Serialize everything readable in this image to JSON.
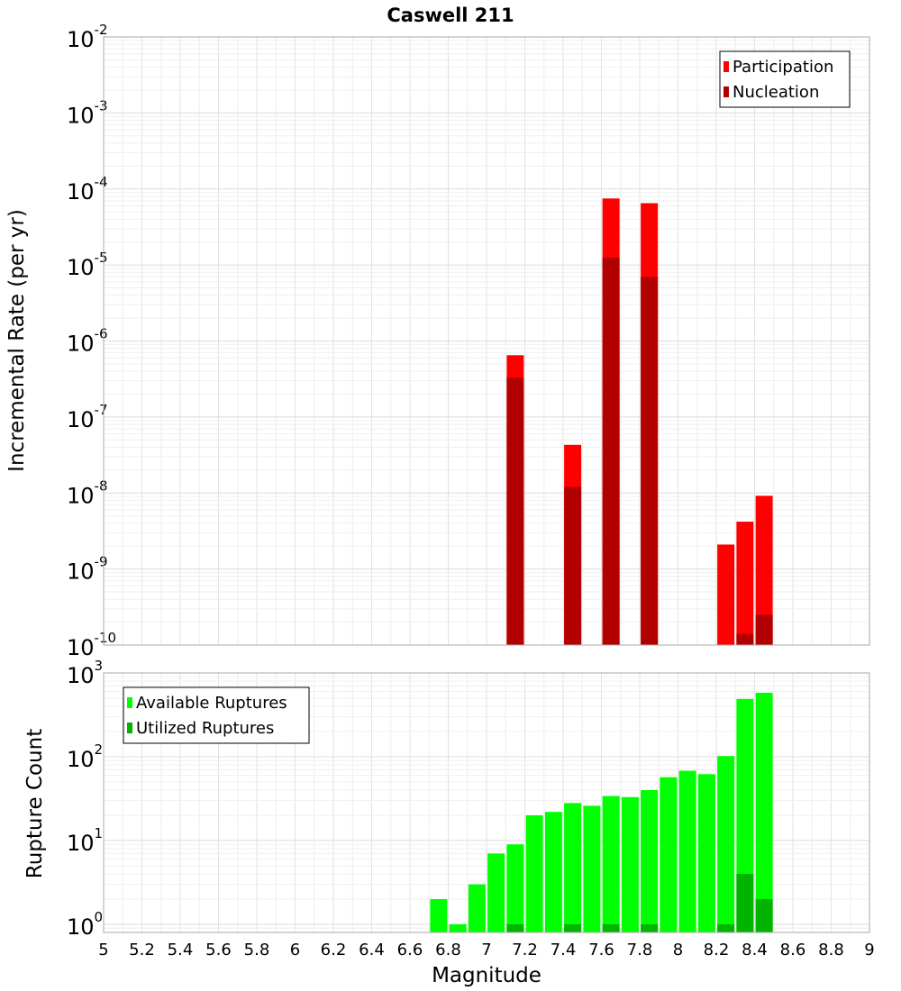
{
  "chart_data": [
    {
      "type": "bar",
      "title": "Caswell 211",
      "ylabel": "Incremental Rate (per yr)",
      "xlabel": "",
      "yscale": "log",
      "ylim": [
        1e-10,
        0.01
      ],
      "xlim": [
        5,
        9
      ],
      "grid": true,
      "legend_position": "top-right",
      "series": [
        {
          "name": "Participation",
          "color": "#ff0000",
          "x": [
            7.15,
            7.45,
            7.65,
            7.85,
            8.25,
            8.35,
            8.45
          ],
          "values": [
            6.5e-07,
            4.3e-08,
            7.5e-05,
            6.5e-05,
            2.1e-09,
            4.2e-09,
            9.2e-09
          ]
        },
        {
          "name": "Nucleation",
          "color": "#b20000",
          "x": [
            7.15,
            7.45,
            7.65,
            7.85,
            8.35,
            8.45
          ],
          "values": [
            3.3e-07,
            1.2e-08,
            1.25e-05,
            7e-06,
            1.4e-10,
            2.5e-10
          ]
        }
      ]
    },
    {
      "type": "bar",
      "title": "",
      "ylabel": "Rupture Count",
      "xlabel": "Magnitude",
      "yscale": "log",
      "ylim": [
        0.8,
        1000
      ],
      "xlim": [
        5,
        9
      ],
      "grid": true,
      "legend_position": "top-left",
      "x_ticks": [
        "5",
        "5.2",
        "5.4",
        "5.6",
        "5.8",
        "6",
        "6.2",
        "6.4",
        "6.6",
        "6.8",
        "7",
        "7.2",
        "7.4",
        "7.6",
        "7.8",
        "8",
        "8.2",
        "8.4",
        "8.6",
        "8.8",
        "9"
      ],
      "series": [
        {
          "name": "Available Ruptures",
          "color": "#00ff00",
          "x": [
            6.75,
            6.85,
            6.95,
            7.05,
            7.15,
            7.25,
            7.35,
            7.45,
            7.55,
            7.65,
            7.75,
            7.85,
            7.95,
            8.05,
            8.15,
            8.25,
            8.35,
            8.45
          ],
          "values": [
            2,
            1,
            3,
            7,
            9,
            20,
            22,
            28,
            26,
            34,
            33,
            40,
            57,
            68,
            62,
            102,
            490,
            580
          ]
        },
        {
          "name": "Utilized Ruptures",
          "color": "#00b400",
          "x": [
            7.15,
            7.45,
            7.65,
            7.85,
            8.25,
            8.35,
            8.45
          ],
          "values": [
            1,
            1,
            1,
            1,
            1,
            4,
            2
          ]
        }
      ]
    }
  ]
}
